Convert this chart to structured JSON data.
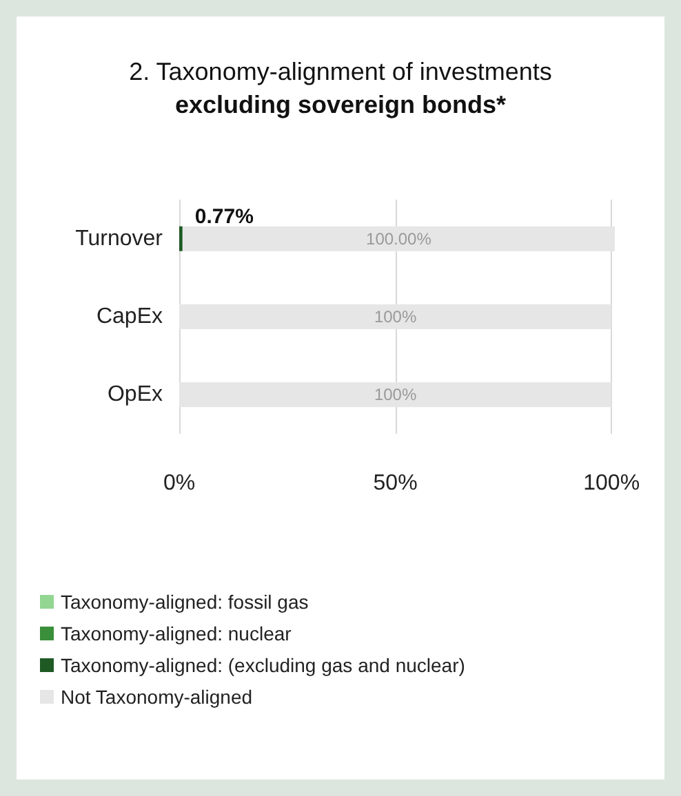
{
  "chart_data": {
    "type": "bar",
    "orientation": "horizontal",
    "stacked": true,
    "title": "2. Taxonomy-alignment of investments",
    "subtitle": "excluding sovereign bonds*",
    "categories": [
      "Turnover",
      "CapEx",
      "OpEx"
    ],
    "series": [
      {
        "name": "Taxonomy-aligned: fossil gas",
        "color": "#92d692",
        "values": [
          0,
          0,
          0
        ],
        "value_labels": [
          null,
          null,
          null
        ]
      },
      {
        "name": "Taxonomy-aligned: nuclear",
        "color": "#3a8f3a",
        "values": [
          0,
          0,
          0
        ],
        "value_labels": [
          null,
          null,
          null
        ]
      },
      {
        "name": "Taxonomy-aligned: (excluding gas and nuclear)",
        "color": "#1f5a24",
        "values": [
          0.77,
          0,
          0
        ],
        "value_labels": [
          "0.77%",
          null,
          null
        ]
      },
      {
        "name": "Not Taxonomy-aligned",
        "color": "#e6e6e6",
        "values": [
          100,
          100,
          100
        ],
        "value_labels": [
          "100.00%",
          "100%",
          "100%"
        ]
      }
    ],
    "xlim": [
      0,
      100.77
    ],
    "xticks": [
      {
        "value": 0,
        "label": "0%"
      },
      {
        "value": 50,
        "label": "50%"
      },
      {
        "value": 100,
        "label": "100%"
      }
    ],
    "grid": "x",
    "legend": "bottom left"
  }
}
